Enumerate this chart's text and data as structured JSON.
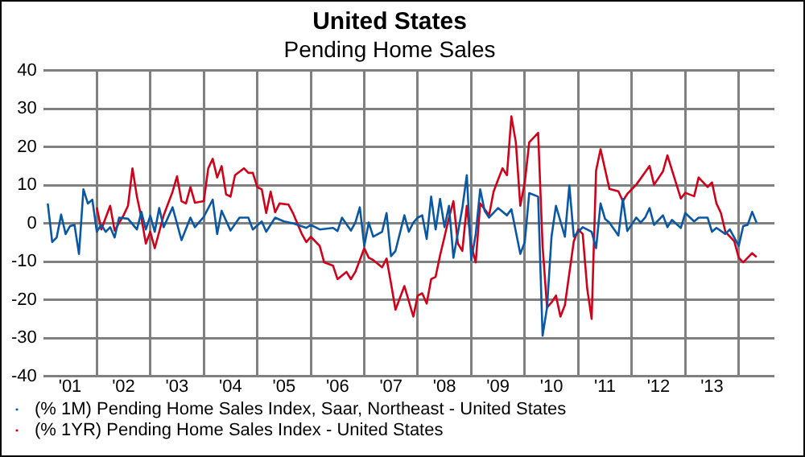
{
  "chart_data": {
    "type": "line",
    "title": "United States",
    "subtitle": "Pending Home Sales",
    "xlim": [
      "2001-01",
      "2014-09"
    ],
    "xticks": [
      {
        "value": "2001-07",
        "label": "'01"
      },
      {
        "value": "2002-01",
        "label": null
      },
      {
        "value": "2002-07",
        "label": "'02"
      },
      {
        "value": "2003-01",
        "label": null
      },
      {
        "value": "2003-07",
        "label": "'03"
      },
      {
        "value": "2004-01",
        "label": null
      },
      {
        "value": "2004-07",
        "label": "'04"
      },
      {
        "value": "2005-01",
        "label": null
      },
      {
        "value": "2005-07",
        "label": "'05"
      },
      {
        "value": "2006-01",
        "label": null
      },
      {
        "value": "2006-07",
        "label": "'06"
      },
      {
        "value": "2007-01",
        "label": null
      },
      {
        "value": "2007-07",
        "label": "'07"
      },
      {
        "value": "2008-01",
        "label": null
      },
      {
        "value": "2008-07",
        "label": "'08"
      },
      {
        "value": "2009-01",
        "label": null
      },
      {
        "value": "2009-07",
        "label": "'09"
      },
      {
        "value": "2010-01",
        "label": null
      },
      {
        "value": "2010-07",
        "label": "'10"
      },
      {
        "value": "2011-01",
        "label": null
      },
      {
        "value": "2011-07",
        "label": "'11"
      },
      {
        "value": "2012-01",
        "label": null
      },
      {
        "value": "2012-07",
        "label": "'12"
      },
      {
        "value": "2013-01",
        "label": null
      },
      {
        "value": "2013-07",
        "label": "'13"
      },
      {
        "value": "2014-01",
        "label": null
      }
    ],
    "ylim": [
      -40,
      40
    ],
    "yticks": [
      -40,
      -30,
      -20,
      -10,
      0,
      10,
      20,
      30,
      40
    ],
    "grid": true,
    "legend": "bottom",
    "marker": "none",
    "line_style": "solid",
    "series": [
      {
        "name": "(% 1M) Pending Home Sales Index, Saar, Northeast - United States",
        "color": "#0a58a3",
        "x": [
          "2001-02",
          "2001-03",
          "2001-04",
          "2001-05",
          "2001-06",
          "2001-07",
          "2001-08",
          "2001-09",
          "2001-10",
          "2001-11",
          "2001-12",
          "2002-01",
          "2002-02",
          "2002-03",
          "2002-04",
          "2002-05",
          "2002-06",
          "2002-08",
          "2002-10",
          "2002-11",
          "2002-12",
          "2003-01",
          "2003-02",
          "2003-03",
          "2003-04",
          "2003-06",
          "2003-08",
          "2003-10",
          "2003-11",
          "2004-01",
          "2004-03",
          "2004-04",
          "2004-05",
          "2004-07",
          "2004-09",
          "2004-11",
          "2004-12",
          "2005-02",
          "2005-03",
          "2005-05",
          "2005-07",
          "2005-09",
          "2005-12",
          "2006-01",
          "2006-03",
          "2006-06",
          "2006-07",
          "2006-08",
          "2006-10",
          "2006-11",
          "2006-12",
          "2007-01",
          "2007-02",
          "2007-03",
          "2007-05",
          "2007-06",
          "2007-07",
          "2007-08",
          "2007-10",
          "2007-11",
          "2007-12",
          "2008-01",
          "2008-02",
          "2008-03",
          "2008-04",
          "2008-05",
          "2008-06",
          "2008-07",
          "2008-08",
          "2008-09",
          "2008-11",
          "2008-12",
          "2009-01",
          "2009-02",
          "2009-03",
          "2009-04",
          "2009-05",
          "2009-07",
          "2009-09",
          "2009-10",
          "2009-12",
          "2010-01",
          "2010-02",
          "2010-04",
          "2010-05",
          "2010-06",
          "2010-07",
          "2010-08",
          "2010-10",
          "2010-11",
          "2010-12",
          "2011-02",
          "2011-04",
          "2011-05",
          "2011-06",
          "2011-07",
          "2011-08",
          "2011-10",
          "2011-11",
          "2011-12",
          "2012-02",
          "2012-03",
          "2012-04",
          "2012-05",
          "2012-06",
          "2012-08",
          "2012-09",
          "2012-10",
          "2012-12",
          "2013-01",
          "2013-03",
          "2013-04",
          "2013-06",
          "2013-07",
          "2013-08",
          "2013-10",
          "2013-11",
          "2014-01",
          "2014-02",
          "2014-03",
          "2014-04",
          "2014-05"
        ],
        "values": [
          5.2,
          -4.9,
          -3.7,
          2.3,
          -2.8,
          -0.7,
          -0.4,
          -8,
          8.9,
          5.2,
          6.2,
          -2.2,
          -0.4,
          -2.2,
          -1,
          -3.7,
          1.5,
          1.2,
          -1.6,
          3,
          -1.6,
          2,
          -2.2,
          4,
          -1,
          4.2,
          -4.4,
          1.5,
          -1,
          1.7,
          6.2,
          -2.8,
          3.3,
          -1.9,
          1.5,
          1.5,
          -1.6,
          0.5,
          -2.2,
          1.5,
          0.5,
          0,
          -1.2,
          -0.4,
          -1.6,
          -1.2,
          -2,
          1.5,
          -1.9,
          0.2,
          4.2,
          -5.9,
          0.2,
          -3.5,
          -2.2,
          2.7,
          -8.6,
          -7.2,
          2.1,
          -2.2,
          0.2,
          1.5,
          2.1,
          -4.1,
          7,
          -1.6,
          6.4,
          -1,
          4.6,
          -9,
          4,
          12.6,
          -9.6,
          -2.8,
          8.9,
          3.3,
          1.5,
          4,
          2.1,
          3.7,
          -8,
          -4.9,
          7.9,
          7,
          -29.4,
          -22,
          -3.5,
          4.6,
          -3.5,
          9.9,
          -3.5,
          -1,
          -2.2,
          -6.5,
          5.2,
          1.2,
          0.2,
          -3.2,
          6.4,
          -2,
          1.5,
          0.2,
          1.5,
          4,
          -0.4,
          2.1,
          -1,
          0.9,
          -1.2,
          2.7,
          0.5,
          1.5,
          1.5,
          -2.2,
          -1.2,
          -2.8,
          -1.6,
          -5.9,
          -0.7,
          -0.4,
          3,
          0.2
        ]
      },
      {
        "name": "(% 1YR) Pending Home Sales Index - United States",
        "color": "#d0021b",
        "x": [
          "2002-01",
          "2002-02",
          "2002-04",
          "2002-05",
          "2002-07",
          "2002-08",
          "2002-09",
          "2002-10",
          "2002-11",
          "2002-12",
          "2003-01",
          "2003-02",
          "2003-04",
          "2003-06",
          "2003-07",
          "2003-08",
          "2003-09",
          "2003-10",
          "2003-11",
          "2004-01",
          "2004-02",
          "2004-03",
          "2004-04",
          "2004-05",
          "2004-06",
          "2004-07",
          "2004-08",
          "2004-10",
          "2004-11",
          "2004-12",
          "2005-01",
          "2005-02",
          "2005-03",
          "2005-04",
          "2005-05",
          "2005-06",
          "2005-08",
          "2005-09",
          "2005-11",
          "2005-12",
          "2006-01",
          "2006-03",
          "2006-04",
          "2006-06",
          "2006-07",
          "2006-09",
          "2006-10",
          "2006-11",
          "2007-01",
          "2007-02",
          "2007-03",
          "2007-05",
          "2007-06",
          "2007-07",
          "2007-08",
          "2007-10",
          "2007-12",
          "2008-01",
          "2008-02",
          "2008-03",
          "2008-04",
          "2008-05",
          "2008-06",
          "2008-07",
          "2008-08",
          "2008-09",
          "2008-10",
          "2008-11",
          "2008-12",
          "2009-01",
          "2009-02",
          "2009-03",
          "2009-04",
          "2009-05",
          "2009-06",
          "2009-07",
          "2009-08",
          "2009-09",
          "2009-10",
          "2009-11",
          "2009-12",
          "2010-01",
          "2010-02",
          "2010-04",
          "2010-05",
          "2010-06",
          "2010-07",
          "2010-08",
          "2010-09",
          "2010-10",
          "2010-12",
          "2011-01",
          "2011-02",
          "2011-03",
          "2011-04",
          "2011-05",
          "2011-06",
          "2011-08",
          "2011-10",
          "2011-11",
          "2011-12",
          "2012-02",
          "2012-05",
          "2012-06",
          "2012-08",
          "2012-09",
          "2012-12",
          "2013-01",
          "2013-03",
          "2013-04",
          "2013-06",
          "2013-07",
          "2013-08",
          "2013-09",
          "2013-10",
          "2013-12",
          "2014-01",
          "2014-02",
          "2014-04",
          "2014-05"
        ],
        "values": [
          4.2,
          -1.6,
          4.6,
          -1.9,
          2.1,
          4.6,
          14.4,
          7,
          1.5,
          -5.3,
          -2.2,
          -6.5,
          2.1,
          8.3,
          12.3,
          5.8,
          5.2,
          9.5,
          5.4,
          5.8,
          14.4,
          16.9,
          12,
          15,
          7.6,
          7,
          12.6,
          14.4,
          13.2,
          13.2,
          9.5,
          8.9,
          2.7,
          8.3,
          2.9,
          5.2,
          4.9,
          2.7,
          -2.8,
          -4.9,
          -3.5,
          -5.9,
          -10.2,
          -11.1,
          -14.6,
          -12.7,
          -14.6,
          -12.7,
          -6.5,
          -9,
          -9.6,
          -11.5,
          -9.2,
          -15.7,
          -22.6,
          -16.4,
          -24.4,
          -18.9,
          -18.3,
          -21,
          -14.6,
          -14,
          -8.4,
          -3.5,
          1.5,
          5.8,
          -5.3,
          -7.2,
          4.6,
          -5.9,
          -10.2,
          5.2,
          3.7,
          2.1,
          8.3,
          11.4,
          14.4,
          12.6,
          28,
          21.2,
          4.6,
          10.7,
          21.2,
          23.7,
          -6,
          -22,
          -20.7,
          -18.9,
          -24.4,
          -21.4,
          -4.7,
          -1.6,
          -2.8,
          -17,
          -25,
          13.8,
          19.4,
          9,
          8.4,
          5.8,
          7.7,
          10.1,
          15,
          10.1,
          13.6,
          17.8,
          6.5,
          8,
          7.1,
          12,
          9.5,
          10.7,
          5.2,
          2.7,
          -2.2,
          -4.7,
          -9,
          -10.2,
          -7.8,
          -8.8
        ]
      }
    ]
  }
}
